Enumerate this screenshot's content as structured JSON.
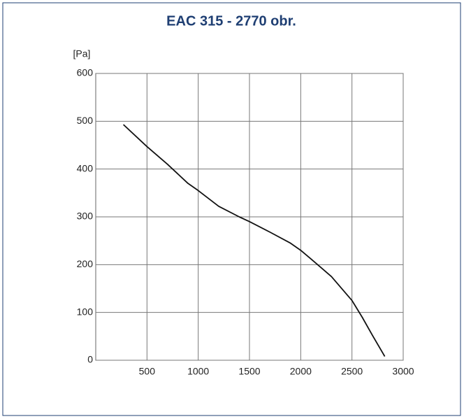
{
  "chart_data": {
    "type": "line",
    "title": "EAC 315 - 2770 obr.",
    "y_label": "[Pa]",
    "x": [
      270,
      500,
      700,
      900,
      1000,
      1200,
      1400,
      1500,
      1700,
      1900,
      2000,
      2100,
      2300,
      2500,
      2600,
      2700,
      2820
    ],
    "series": [
      {
        "color": "#111111",
        "values": [
          493,
          447,
          410,
          370,
          355,
          322,
          300,
          290,
          268,
          245,
          230,
          212,
          175,
          125,
          90,
          52,
          8
        ]
      }
    ],
    "xlim": [
      0,
      3000
    ],
    "xticks": [
      500,
      1000,
      1500,
      2000,
      2500,
      3000
    ],
    "ylim": [
      0,
      600
    ],
    "yticks": [
      0,
      100,
      200,
      300,
      400,
      500,
      600
    ],
    "grid": true
  }
}
